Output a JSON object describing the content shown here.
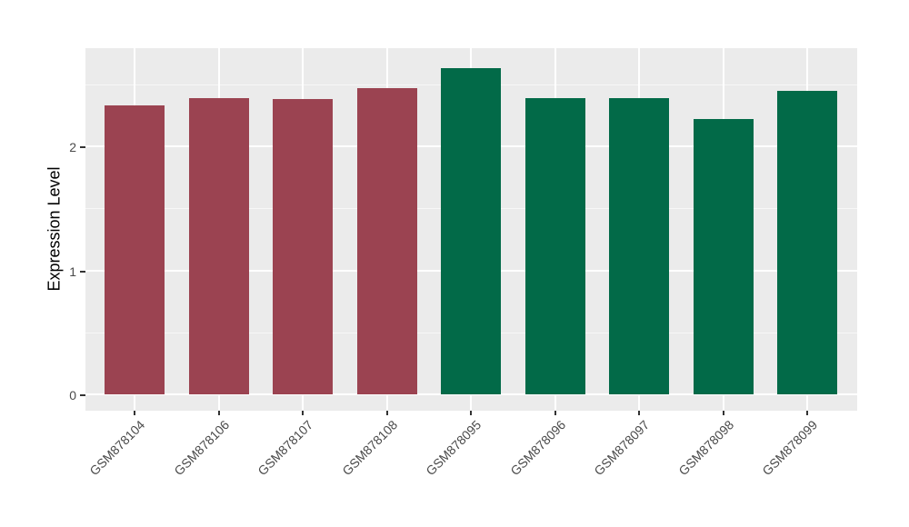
{
  "chart_data": {
    "type": "bar",
    "title": "",
    "ylabel": "Expression Level",
    "xlabel": "",
    "categories": [
      "GSM878104",
      "GSM878106",
      "GSM878107",
      "GSM878108",
      "GSM878095",
      "GSM878096",
      "GSM878097",
      "GSM878098",
      "GSM878099"
    ],
    "values": [
      2.33,
      2.39,
      2.38,
      2.47,
      2.63,
      2.39,
      2.39,
      2.22,
      2.45
    ],
    "bar_colors": [
      "#9B4351",
      "#9B4351",
      "#9B4351",
      "#9B4351",
      "#026A48",
      "#026A48",
      "#026A48",
      "#026A48",
      "#026A48"
    ],
    "y_ticks": [
      0,
      1,
      2
    ],
    "y_minor_ticks": [
      0.5,
      1.5,
      2.5
    ],
    "ylim": [
      -0.13,
      2.79
    ],
    "x_label_rotation": 45,
    "legend_position": "none",
    "grid": "on",
    "panel_bg": "#EBEBEB",
    "grid_color": "#FFFFFF",
    "axis_text_color": "#4A4A4A"
  }
}
